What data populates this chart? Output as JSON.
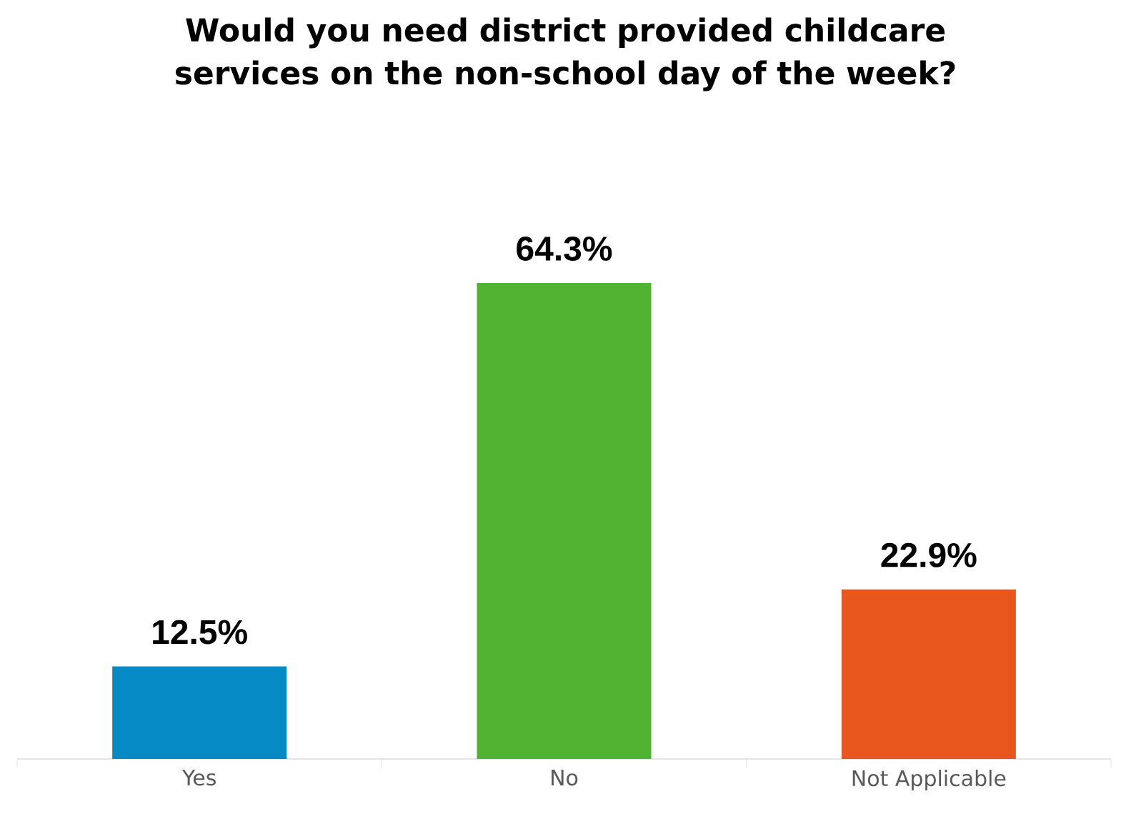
{
  "chart_data": {
    "type": "bar",
    "title": "Would you need district provided childcare services on the non-school day of the week?",
    "categories": [
      "Yes",
      "No",
      "Not Applicable"
    ],
    "values": [
      12.5,
      64.3,
      22.9
    ],
    "colors": [
      "#068ac6",
      "#52b232",
      "#e9561d"
    ],
    "value_labels": [
      "12.5%",
      "64.3%",
      "22.9%"
    ]
  }
}
